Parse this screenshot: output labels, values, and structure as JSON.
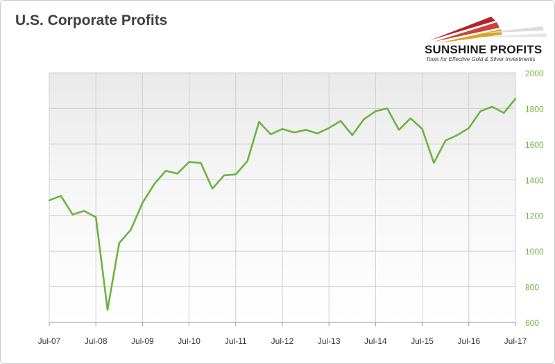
{
  "header": {
    "title": "U.S. Corporate Profits"
  },
  "logo": {
    "name": "SUNSHINE PROFITS",
    "tagline": "Tools for Effective Gold & Silver Investments"
  },
  "colors": {
    "line": "#6db33f",
    "axis_labels": "#6db33f",
    "grid": "#cfcfcf",
    "title": "#3f3f3f",
    "logo_red": "#b4232a",
    "logo_gold": "#d9a425"
  },
  "chart_data": {
    "type": "line",
    "title": "U.S. Corporate Profits",
    "xlabel": "",
    "ylabel": "",
    "ylim": [
      600,
      2000
    ],
    "yticks": [
      600,
      800,
      1000,
      1200,
      1400,
      1600,
      1800,
      2000
    ],
    "x_tick_labels": [
      "Jul-07",
      "Jul-08",
      "Jul-09",
      "Jul-10",
      "Jul-11",
      "Jul-12",
      "Jul-13",
      "Jul-14",
      "Jul-15",
      "Jul-16",
      "Jul-17"
    ],
    "y_axis_position": "right",
    "grid": true,
    "legend": "none",
    "series": [
      {
        "x": [
          "Jul-07",
          "Oct-07",
          "Jan-08",
          "Apr-08",
          "Jul-08",
          "Oct-08",
          "Jan-09",
          "Apr-09",
          "Jul-09",
          "Oct-09",
          "Jan-10",
          "Apr-10",
          "Jul-10",
          "Oct-10",
          "Jan-11",
          "Apr-11",
          "Jul-11",
          "Oct-11",
          "Jan-12",
          "Apr-12",
          "Jul-12",
          "Oct-12",
          "Jan-13",
          "Apr-13",
          "Jul-13",
          "Oct-13",
          "Jan-14",
          "Apr-14",
          "Jul-14",
          "Oct-14",
          "Jan-15",
          "Apr-15",
          "Jul-15",
          "Oct-15",
          "Jan-16",
          "Apr-16",
          "Jul-16",
          "Oct-16",
          "Jan-17",
          "Apr-17",
          "Jul-17"
        ],
        "values": [
          1285,
          1310,
          1205,
          1225,
          1190,
          670,
          1045,
          1120,
          1270,
          1375,
          1450,
          1435,
          1500,
          1495,
          1350,
          1425,
          1430,
          1505,
          1725,
          1655,
          1685,
          1665,
          1680,
          1660,
          1690,
          1730,
          1650,
          1740,
          1785,
          1800,
          1680,
          1745,
          1685,
          1495,
          1620,
          1650,
          1690,
          1785,
          1810,
          1775,
          1855
        ]
      }
    ]
  }
}
